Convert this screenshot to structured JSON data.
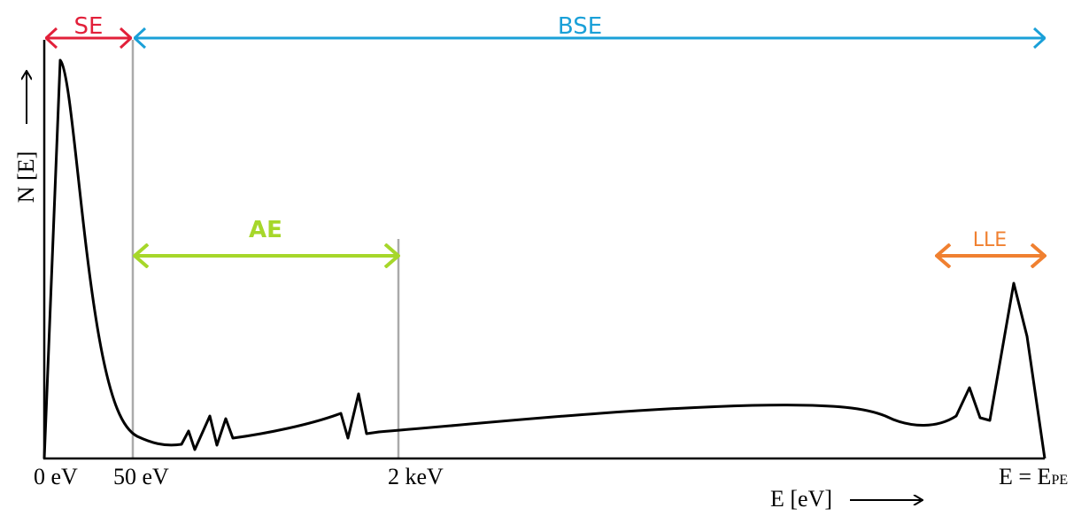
{
  "regions": [
    {
      "label": "SE"
    },
    {
      "label": "BSE"
    },
    {
      "label": "AE"
    },
    {
      "label": "LLE"
    }
  ],
  "axes": {
    "y_label": "N [E]",
    "x_label": "E [eV]"
  },
  "x_markers": [
    "0 eV",
    "50 eV",
    "2 keV"
  ],
  "end_marker": {
    "text": "E = E",
    "subscript": "PE"
  }
}
